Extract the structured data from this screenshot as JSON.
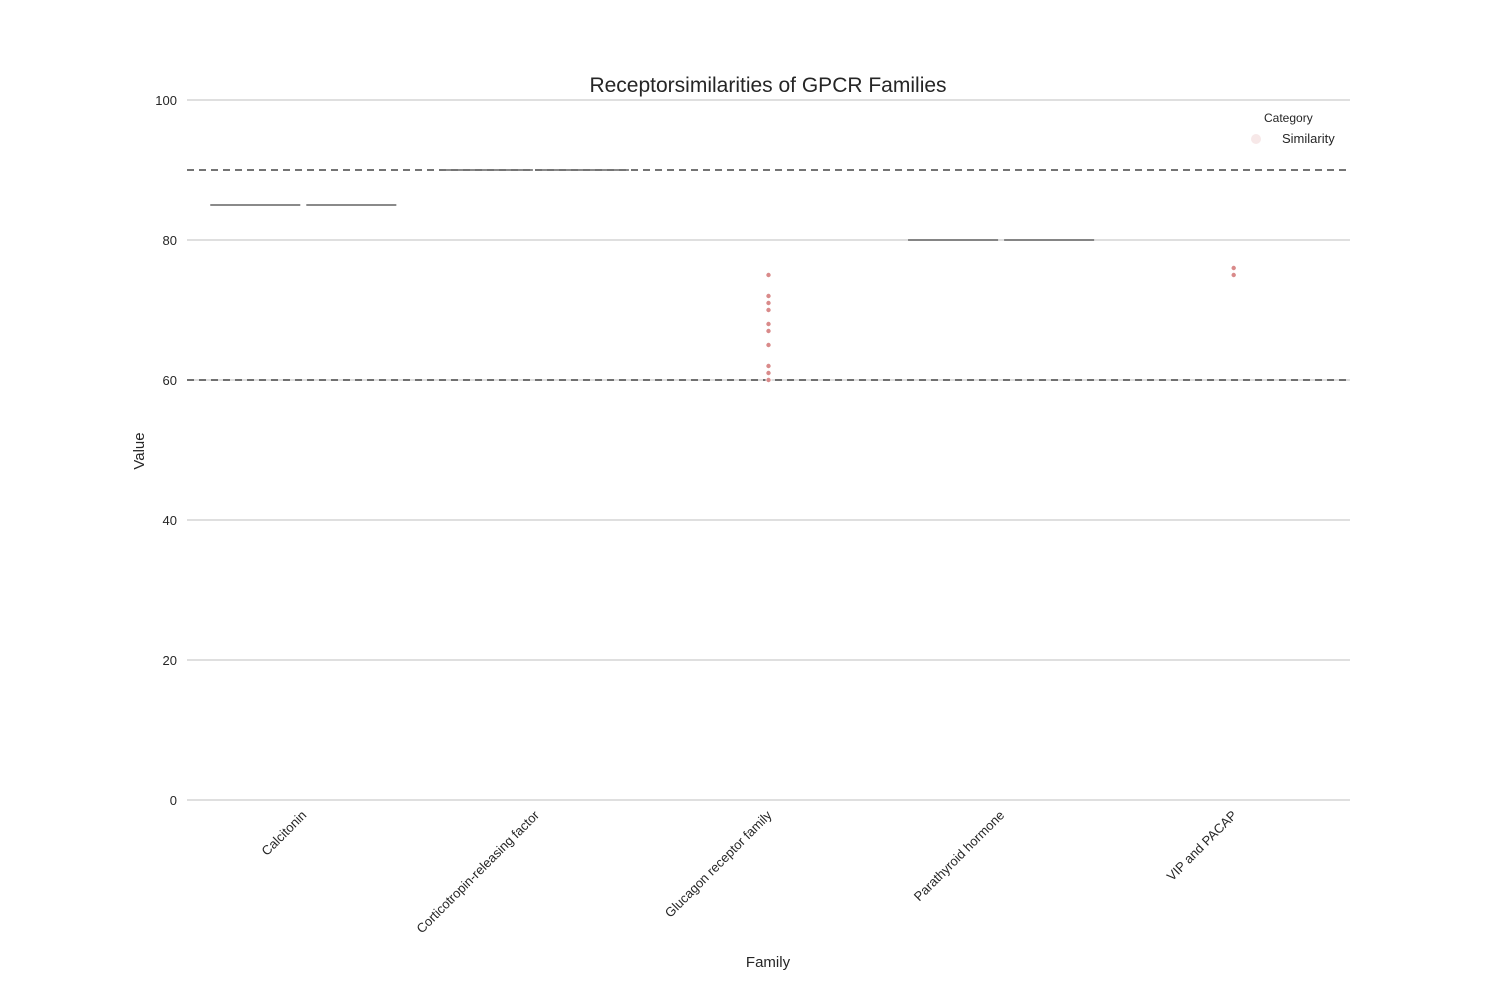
{
  "chart_data": {
    "type": "violin",
    "title": "Receptorsimilarities of GPCR Families",
    "xlabel": "Family",
    "ylabel": "Value",
    "categories": [
      "Calcitonin",
      "Corticotropin-releasing factor",
      "Glucagon receptor family",
      "Parathyroid hormone",
      "VIP and PACAP"
    ],
    "series": [
      {
        "name": "Similarity",
        "color": "#d98a8a",
        "edge_color": "#444444",
        "values": [
          [
            85
          ],
          [
            90
          ],
          [
            75,
            72,
            71,
            70,
            68,
            67,
            67,
            65,
            62,
            61,
            60
          ],
          [
            80
          ],
          [
            76,
            75
          ]
        ]
      }
    ],
    "legend_title": "Category",
    "legend": "upper right",
    "reference_lines": [
      90,
      60
    ],
    "ylim": [
      0,
      100
    ],
    "yticks": [
      0,
      20,
      40,
      60,
      80,
      100
    ],
    "grid": true
  }
}
